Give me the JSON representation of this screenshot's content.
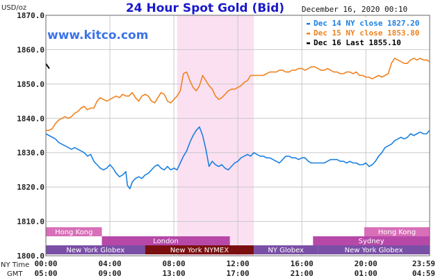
{
  "header": {
    "units": "USD/oz",
    "title": "24 Hour Spot Gold (Bid)",
    "timestamp": "December 16, 2020 00:10",
    "watermark": "www.kitco.com"
  },
  "colors": {
    "dec14": "#1a7fe0",
    "dec15": "#f0821e",
    "dec16": "#000000",
    "highlight": "#fbe0f2",
    "title": "#1a1acc",
    "session_light": "#d86fb8",
    "session_mid": "#b748a8",
    "session_dark": "#7a4fa6",
    "session_nymex": "#7a0f0f"
  },
  "legend": [
    {
      "label": "Dec 14 NY close 1827.20",
      "color": "#1a7fe0"
    },
    {
      "label": "Dec 15 NY close 1853.80",
      "color": "#f0821e"
    },
    {
      "label": "Dec 16 Last 1855.10",
      "color": "#000000"
    }
  ],
  "axis": {
    "ny_label": "NY Time",
    "gmt_label": "GMT",
    "ny_ticks": [
      "00:00",
      "04:00",
      "08:00",
      "12:00",
      "16:00",
      "20:00",
      "23:59"
    ],
    "gmt_ticks": [
      "05:00",
      "09:00",
      "13:00",
      "17:00",
      "21:00",
      "01:00",
      "04:59"
    ]
  },
  "sessions": [
    {
      "label": "Hong Kong",
      "row": 0,
      "start": 0,
      "end": 3.5,
      "shade": "light"
    },
    {
      "label": "Hong Kong",
      "row": 0,
      "start": 19.9,
      "end": 23.99,
      "shade": "light"
    },
    {
      "label": "London",
      "row": 1,
      "start": 3.5,
      "end": 11.5,
      "shade": "mid"
    },
    {
      "label": "Sydney",
      "row": 1,
      "start": 16.7,
      "end": 23.99,
      "shade": "mid"
    },
    {
      "label": "New York Globex",
      "row": 2,
      "start": 0,
      "end": 6.2,
      "shade": "dark"
    },
    {
      "label": "New York NYMEX",
      "row": 2,
      "start": 6.2,
      "end": 13.0,
      "shade": "nymex"
    },
    {
      "label": "NY Globex",
      "row": 2,
      "start": 13.0,
      "end": 17.0,
      "shade": "dark"
    },
    {
      "label": "New York Globex",
      "row": 2,
      "start": 17.0,
      "end": 23.99,
      "shade": "dark"
    }
  ],
  "chart_data": {
    "type": "line",
    "title": "24 Hour Spot Gold (Bid)",
    "ylabel": "USD/oz",
    "xlim": [
      0,
      23.99
    ],
    "ylim": [
      1800,
      1870
    ],
    "yticks": [
      1800.0,
      1810.0,
      1820.0,
      1830.0,
      1840.0,
      1850.0,
      1860.0,
      1870.0
    ],
    "y_tick_labels": [
      "1800.0",
      "1810.0",
      "1820.0",
      "1830.0",
      "1840.0",
      "1850.0",
      "1860.0",
      "1870.0"
    ],
    "xticks_hours": [
      0,
      4,
      8,
      12,
      16,
      20,
      23.99
    ],
    "highlight_range": [
      8.2,
      13.0
    ],
    "grid": true,
    "legend_position": "top-right",
    "series": [
      {
        "name": "Dec 14 NY close 1827.20",
        "color": "#1a7fe0",
        "x": [
          0.0,
          0.2,
          0.4,
          0.6,
          0.8,
          1.0,
          1.2,
          1.4,
          1.6,
          1.8,
          2.0,
          2.2,
          2.4,
          2.6,
          2.8,
          3.0,
          3.2,
          3.4,
          3.6,
          3.8,
          4.0,
          4.2,
          4.4,
          4.6,
          4.8,
          5.0,
          5.1,
          5.25,
          5.4,
          5.6,
          5.8,
          6.0,
          6.2,
          6.4,
          6.6,
          6.8,
          7.0,
          7.2,
          7.4,
          7.6,
          7.8,
          8.0,
          8.2,
          8.4,
          8.6,
          8.8,
          9.0,
          9.2,
          9.4,
          9.6,
          9.8,
          10.0,
          10.2,
          10.4,
          10.6,
          10.8,
          11.0,
          11.2,
          11.4,
          11.6,
          11.8,
          12.0,
          12.2,
          12.4,
          12.6,
          12.8,
          13.0,
          13.2,
          13.4,
          13.6,
          13.8,
          14.0,
          14.2,
          14.4,
          14.6,
          14.8,
          15.0,
          15.2,
          15.4,
          15.6,
          15.8,
          16.0,
          16.2,
          16.4,
          16.6,
          16.8,
          17.0,
          17.2,
          17.4,
          17.6,
          17.8,
          18.0,
          18.2,
          18.4,
          18.6,
          18.8,
          19.0,
          19.2,
          19.4,
          19.6,
          19.8,
          20.0,
          20.2,
          20.4,
          20.6,
          20.8,
          21.0,
          21.2,
          21.4,
          21.6,
          21.8,
          22.0,
          22.2,
          22.4,
          22.6,
          22.8,
          23.0,
          23.2,
          23.4,
          23.6,
          23.8,
          23.99
        ],
        "y": [
          1835.5,
          1835.0,
          1834.5,
          1834.0,
          1833.0,
          1832.5,
          1832.0,
          1831.5,
          1831.0,
          1831.5,
          1831.0,
          1830.5,
          1830.0,
          1829.0,
          1829.5,
          1827.5,
          1826.5,
          1825.5,
          1825.0,
          1825.5,
          1826.5,
          1825.5,
          1824.0,
          1823.0,
          1823.5,
          1824.5,
          1820.5,
          1819.5,
          1821.5,
          1822.5,
          1823.0,
          1822.5,
          1823.5,
          1824.0,
          1825.0,
          1826.0,
          1826.5,
          1825.5,
          1825.0,
          1826.0,
          1825.0,
          1825.5,
          1825.0,
          1827.0,
          1829.0,
          1830.5,
          1833.0,
          1835.0,
          1836.5,
          1837.5,
          1835.0,
          1831.0,
          1826.0,
          1827.5,
          1826.5,
          1826.0,
          1826.5,
          1825.5,
          1825.0,
          1826.0,
          1827.0,
          1827.5,
          1828.5,
          1829.0,
          1829.5,
          1829.0,
          1830.0,
          1829.5,
          1829.0,
          1829.0,
          1828.5,
          1828.5,
          1828.0,
          1827.5,
          1827.0,
          1828.0,
          1829.0,
          1829.0,
          1828.5,
          1828.5,
          1828.0,
          1828.5,
          1828.5,
          1827.5,
          1827.0,
          1827.0,
          1827.0,
          1827.0,
          1827.0,
          1827.5,
          1828.0,
          1828.0,
          1828.0,
          1827.5,
          1827.5,
          1827.0,
          1827.5,
          1827.0,
          1827.0,
          1826.5,
          1826.5,
          1827.0,
          1826.0,
          1826.5,
          1827.5,
          1829.0,
          1830.0,
          1831.5,
          1832.0,
          1832.5,
          1833.5,
          1834.0,
          1834.5,
          1834.0,
          1834.5,
          1835.5,
          1835.0,
          1835.5,
          1836.0,
          1835.5,
          1835.5,
          1836.5
        ]
      },
      {
        "name": "Dec 15 NY close 1853.80",
        "color": "#f0821e",
        "x": [
          0.0,
          0.2,
          0.4,
          0.6,
          0.8,
          1.0,
          1.2,
          1.4,
          1.6,
          1.8,
          2.0,
          2.2,
          2.4,
          2.6,
          2.8,
          3.0,
          3.2,
          3.4,
          3.6,
          3.8,
          4.0,
          4.2,
          4.4,
          4.6,
          4.8,
          5.0,
          5.2,
          5.4,
          5.6,
          5.8,
          6.0,
          6.2,
          6.4,
          6.6,
          6.8,
          7.0,
          7.2,
          7.4,
          7.6,
          7.8,
          8.0,
          8.2,
          8.4,
          8.6,
          8.8,
          9.0,
          9.2,
          9.4,
          9.6,
          9.8,
          10.0,
          10.2,
          10.4,
          10.6,
          10.8,
          11.0,
          11.2,
          11.4,
          11.6,
          11.8,
          12.0,
          12.2,
          12.4,
          12.6,
          12.8,
          13.0,
          13.2,
          13.4,
          13.6,
          13.8,
          14.0,
          14.2,
          14.4,
          14.6,
          14.8,
          15.0,
          15.2,
          15.4,
          15.6,
          15.8,
          16.0,
          16.2,
          16.4,
          16.6,
          16.8,
          17.0,
          17.2,
          17.4,
          17.6,
          17.8,
          18.0,
          18.2,
          18.4,
          18.6,
          18.8,
          19.0,
          19.2,
          19.4,
          19.6,
          19.8,
          20.0,
          20.2,
          20.4,
          20.6,
          20.8,
          21.0,
          21.2,
          21.4,
          21.6,
          21.8,
          22.0,
          22.2,
          22.4,
          22.6,
          22.8,
          23.0,
          23.2,
          23.4,
          23.6,
          23.8,
          23.99
        ],
        "y": [
          1836.5,
          1836.5,
          1837.0,
          1838.5,
          1839.5,
          1840.0,
          1840.5,
          1840.0,
          1840.5,
          1841.5,
          1842.0,
          1843.0,
          1843.5,
          1842.5,
          1843.0,
          1843.0,
          1845.0,
          1846.0,
          1845.5,
          1845.0,
          1845.5,
          1846.0,
          1846.5,
          1846.0,
          1847.0,
          1846.5,
          1846.5,
          1847.5,
          1846.0,
          1845.0,
          1846.5,
          1847.0,
          1846.5,
          1845.0,
          1844.5,
          1846.0,
          1847.5,
          1847.0,
          1845.0,
          1844.5,
          1845.5,
          1846.5,
          1848.0,
          1853.0,
          1853.5,
          1851.0,
          1849.0,
          1848.0,
          1849.5,
          1852.5,
          1851.0,
          1849.5,
          1848.5,
          1846.5,
          1845.5,
          1846.0,
          1847.0,
          1848.0,
          1848.5,
          1848.5,
          1849.0,
          1849.5,
          1850.5,
          1851.0,
          1852.5,
          1852.5,
          1852.5,
          1852.5,
          1852.5,
          1853.0,
          1853.5,
          1853.5,
          1853.5,
          1854.0,
          1854.0,
          1853.5,
          1853.5,
          1854.0,
          1854.0,
          1854.5,
          1854.5,
          1854.0,
          1854.5,
          1855.0,
          1855.0,
          1854.5,
          1854.0,
          1854.0,
          1854.5,
          1854.0,
          1853.5,
          1853.5,
          1853.0,
          1853.0,
          1853.5,
          1853.5,
          1853.0,
          1853.5,
          1852.5,
          1852.5,
          1852.0,
          1852.0,
          1851.5,
          1852.0,
          1852.5,
          1852.0,
          1852.5,
          1853.0,
          1856.0,
          1857.5,
          1857.0,
          1856.5,
          1856.0,
          1856.0,
          1857.0,
          1857.5,
          1857.0,
          1857.5,
          1857.0,
          1857.0,
          1856.5
        ]
      }
    ],
    "last_marker": {
      "name": "Dec 16 Last 1855.10",
      "x": 0.0,
      "y": 1855.1
    }
  }
}
